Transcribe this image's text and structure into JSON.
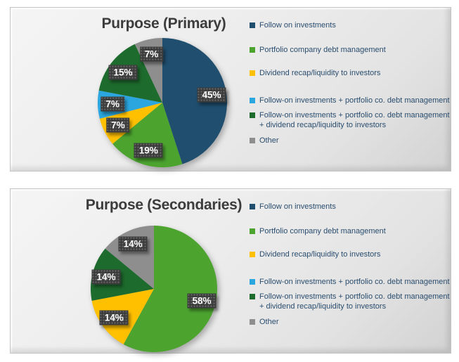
{
  "chart_data": [
    {
      "type": "pie",
      "title": "Purpose (Primary)",
      "legend_position": "right",
      "categories": [
        "Follow on investments",
        "Portfolio company debt management",
        "Dividend recap/liquidity to investors",
        "Follow-on investments + portfolio co. debt management",
        "Follow-on investments + portfolio co. debt management + dividend recap/liquidity to investors",
        "Other"
      ],
      "values": [
        45,
        19,
        7,
        7,
        15,
        7
      ],
      "data_labels": [
        "45%",
        "19%",
        "7%",
        "7%",
        "15%",
        "7%"
      ],
      "colors": [
        "#1f4e6e",
        "#4ca42f",
        "#ffc000",
        "#2ba6df",
        "#1e6b2e",
        "#8e8e8e"
      ],
      "label_style": {
        "background": "#3d3d3d",
        "text_color": "#ffffff"
      }
    },
    {
      "type": "pie",
      "title": "Purpose (Secondaries)",
      "legend_position": "right",
      "categories": [
        "Follow on investments",
        "Portfolio company debt management",
        "Dividend recap/liquidity to investors",
        "Follow-on investments + portfolio co. debt management",
        "Follow-on investments + portfolio co. debt management + dividend recap/liquidity to investors",
        "Other"
      ],
      "values": [
        0,
        58,
        14,
        0,
        14,
        14
      ],
      "data_labels": [
        "58%",
        "14%",
        "14%",
        "14%"
      ],
      "colors": [
        "#1f4e6e",
        "#4ca42f",
        "#ffc000",
        "#2ba6df",
        "#1e6b2e",
        "#8e8e8e"
      ],
      "label_style": {
        "background": "#3d3d3d",
        "text_color": "#ffffff"
      }
    }
  ]
}
